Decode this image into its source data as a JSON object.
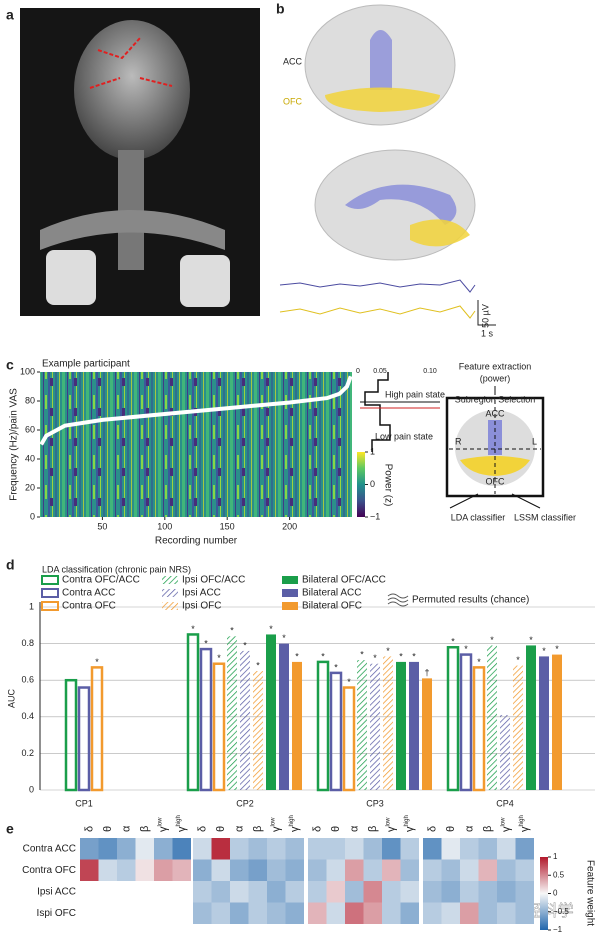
{
  "figure": {
    "panel_labels": [
      "a",
      "b",
      "c",
      "d",
      "e"
    ],
    "b": {
      "acc": "ACC",
      "ofc": "OFC",
      "scale_voltage": "50 µV",
      "scale_time": "1 s"
    },
    "c_side": {
      "hist_ticks": [
        "0",
        "0.05",
        "0.10"
      ],
      "high": "High pain state",
      "low": "Low pain state",
      "feature": "Feature extraction",
      "feature_sub": "(power)",
      "subregion": "Subregion Selection",
      "acc": "ACC",
      "r": "R",
      "l": "L",
      "ofc": "OFC",
      "lda": "LDA classifier",
      "lssm": "LSSM classifier"
    },
    "watermark": "知乎 @逻辑神经科学"
  },
  "chart_data": [
    {
      "type": "line",
      "title": "Example participant",
      "x_label": "Recording number",
      "y_label": "Frequency (Hz)/pain VAS",
      "x": [
        1,
        5,
        20,
        50,
        100,
        150,
        200,
        230,
        240,
        246,
        249
      ],
      "values": [
        50,
        56,
        63,
        67,
        71,
        75,
        79,
        82,
        85,
        90,
        97
      ],
      "color": "#ffffff",
      "xlim": [
        0,
        250
      ],
      "ylim": [
        0,
        100
      ],
      "xticks": [
        50,
        100,
        150,
        200
      ],
      "yticks": [
        0,
        20,
        40,
        60,
        80,
        100
      ],
      "colorbar": {
        "label": "Power (z)",
        "lim": [
          -1,
          1
        ],
        "ticks": [
          1,
          0,
          {
            "value": -1,
            "label": "−1"
          }
        ]
      }
    },
    {
      "type": "bar",
      "title": "LDA classification (chronic pain NRS)",
      "y_label": "AUC",
      "annotation": "Permuted results (chance)",
      "categories": [
        "CP1",
        "CP2",
        "CP3",
        "CP4"
      ],
      "ylim": [
        0,
        1
      ],
      "yticks": [
        0,
        0.2,
        0.4,
        0.6,
        0.8,
        1
      ],
      "grid": true,
      "series": [
        {
          "name": "Contra OFC/ACC",
          "color": "#1a9e4a",
          "style": "outline",
          "values": [
            0.6,
            0.85,
            0.7,
            0.78
          ],
          "significance": [
            null,
            "*",
            "*",
            "*"
          ]
        },
        {
          "name": "Contra ACC",
          "color": "#5b5ea6",
          "style": "outline",
          "values": [
            0.56,
            0.77,
            0.64,
            0.74
          ],
          "significance": [
            null,
            "*",
            "*",
            "*"
          ]
        },
        {
          "name": "Contra OFC",
          "color": "#f29a2e",
          "style": "outline",
          "values": [
            0.67,
            0.69,
            0.56,
            0.67
          ],
          "significance": [
            "*",
            "*",
            "*",
            "*"
          ]
        },
        {
          "name": "Ipsi OFC/ACC",
          "color": "#1a9e4a",
          "style": "hatch",
          "values": [
            null,
            0.84,
            0.71,
            0.79
          ],
          "significance": [
            null,
            "*",
            "*",
            "*"
          ]
        },
        {
          "name": "Ipsi ACC",
          "color": "#5b5ea6",
          "style": "hatch",
          "values": [
            null,
            0.76,
            0.69,
            0.41
          ],
          "significance": [
            null,
            "*",
            "*",
            null
          ]
        },
        {
          "name": "Ipsi OFC",
          "color": "#f29a2e",
          "style": "hatch",
          "values": [
            null,
            0.65,
            0.73,
            0.68
          ],
          "significance": [
            null,
            "*",
            "*",
            "*"
          ]
        },
        {
          "name": "Bilateral OFC/ACC",
          "color": "#1a9e4a",
          "style": "solid",
          "values": [
            null,
            0.85,
            0.7,
            0.79
          ],
          "significance": [
            null,
            "*",
            "*",
            "*"
          ]
        },
        {
          "name": "Bilateral ACC",
          "color": "#5b5ea6",
          "style": "solid",
          "values": [
            null,
            0.8,
            0.7,
            0.73
          ],
          "significance": [
            null,
            "*",
            "*",
            "*"
          ]
        },
        {
          "name": "Bilateral OFC",
          "color": "#f29a2e",
          "style": "solid",
          "values": [
            null,
            0.7,
            0.61,
            0.74
          ],
          "significance": [
            null,
            "*",
            "†",
            "*"
          ]
        }
      ]
    },
    {
      "type": "heatmap",
      "rows": [
        "Contra ACC",
        "Contra OFC",
        "Ipsi ACC",
        "Ispi OFC"
      ],
      "columns": [
        {
          "symbol": "δ"
        },
        {
          "symbol": "θ"
        },
        {
          "symbol": "α"
        },
        {
          "symbol": "β"
        },
        {
          "symbol": "γ",
          "sup": "low"
        },
        {
          "symbol": "γ",
          "sup": "high"
        }
      ],
      "matrices": [
        [
          [
            -0.6,
            -0.7,
            -0.5,
            -0.1,
            -0.5,
            -0.8
          ],
          [
            0.8,
            -0.2,
            -0.3,
            0.1,
            0.4,
            0.3
          ]
        ],
        [
          [
            -0.2,
            0.9,
            -0.3,
            -0.4,
            -0.3,
            -0.4
          ],
          [
            -0.5,
            -0.2,
            -0.5,
            -0.6,
            -0.4,
            -0.5
          ],
          [
            -0.3,
            -0.4,
            -0.2,
            -0.3,
            -0.5,
            -0.3
          ],
          [
            -0.4,
            -0.3,
            -0.5,
            -0.3,
            -0.4,
            -0.5
          ]
        ],
        [
          [
            -0.3,
            -0.3,
            -0.2,
            -0.4,
            -0.7,
            -0.3
          ],
          [
            -0.4,
            -0.2,
            0.4,
            -0.3,
            0.3,
            -0.4
          ],
          [
            -0.3,
            0.2,
            -0.4,
            0.5,
            -0.3,
            -0.2
          ],
          [
            0.3,
            -0.2,
            0.6,
            0.4,
            -0.3,
            -0.5
          ]
        ],
        [
          [
            -0.7,
            -0.1,
            -0.3,
            -0.4,
            -0.2,
            -0.6
          ],
          [
            -0.3,
            -0.4,
            -0.2,
            0.3,
            -0.4,
            -0.3
          ],
          [
            -0.4,
            -0.5,
            -0.3,
            -0.4,
            -0.5,
            -0.4
          ],
          [
            -0.3,
            -0.2,
            0.4,
            -0.4,
            -0.3,
            -0.4
          ]
        ]
      ],
      "clim": [
        -1,
        1
      ],
      "colorbar": {
        "label": "Feature weight",
        "ticks": [
          1,
          0.5,
          0,
          {
            "value": -0.5,
            "label": "−0.5"
          },
          {
            "value": -1,
            "label": "−1"
          }
        ]
      }
    }
  ]
}
